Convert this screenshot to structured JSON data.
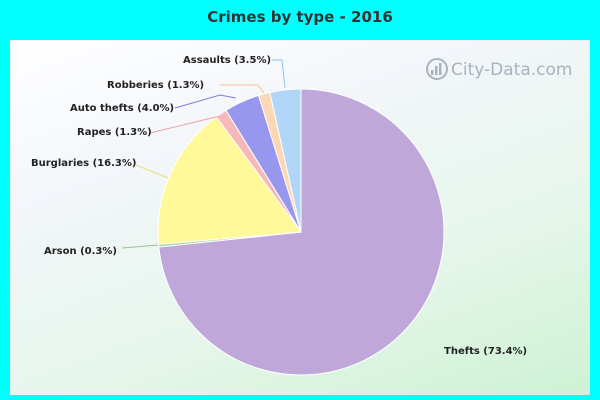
{
  "title": "Crimes by type - 2016",
  "watermark": "City-Data.com",
  "chart_data": {
    "type": "pie",
    "title": "Crimes by type - 2016",
    "slices": [
      {
        "name": "Thefts",
        "value": 73.4,
        "color": "#bfa8d9"
      },
      {
        "name": "Arson",
        "value": 0.3,
        "color": "#a8d5a0"
      },
      {
        "name": "Burglaries",
        "value": 16.3,
        "color": "#fff99a"
      },
      {
        "name": "Rapes",
        "value": 1.3,
        "color": "#f7b8bc"
      },
      {
        "name": "Auto thefts",
        "value": 4.0,
        "color": "#9797ee"
      },
      {
        "name": "Robberies",
        "value": 1.3,
        "color": "#fbd7b5"
      },
      {
        "name": "Assaults",
        "value": 3.5,
        "color": "#b2d6f7"
      }
    ],
    "labels": [
      "Thefts (73.4%)",
      "Arson (0.3%)",
      "Burglaries (16.3%)",
      "Rapes (1.3%)",
      "Auto thefts (4.0%)",
      "Robberies (1.3%)",
      "Assaults (3.5%)"
    ]
  }
}
